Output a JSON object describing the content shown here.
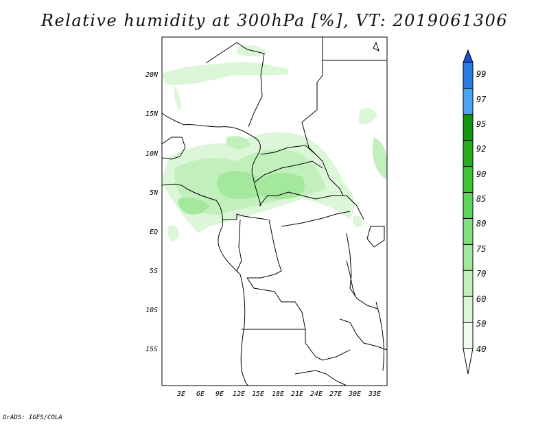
{
  "title": "Relative humidity at 300hPa [%], VT: 2019061306",
  "credit": "GrADS: IGES/COLA",
  "axes": {
    "lat_labels": [
      "20N",
      "15N",
      "10N",
      "5N",
      "EQ",
      "5S",
      "10S",
      "15S"
    ],
    "lon_labels": [
      "3E",
      "6E",
      "9E",
      "12E",
      "15E",
      "18E",
      "21E",
      "24E",
      "27E",
      "30E",
      "33E"
    ]
  },
  "colorbar": {
    "labels": [
      "99",
      "97",
      "95",
      "92",
      "90",
      "85",
      "80",
      "75",
      "70",
      "60",
      "50",
      "40"
    ],
    "colors": [
      "#1a4fd6",
      "#2b7be4",
      "#4aa4f0",
      "#13960f",
      "#26ad22",
      "#3fc43a",
      "#5fd55a",
      "#82df7c",
      "#a3e89d",
      "#c2f0bd",
      "#dcf6d8",
      "#effbed"
    ]
  },
  "map": {
    "land_color": "#ffffff",
    "boundary_color": "#000000",
    "humidity_colors": [
      "#dcf6d8",
      "#c2f0bd",
      "#a3e89d",
      "#82df7c"
    ]
  }
}
